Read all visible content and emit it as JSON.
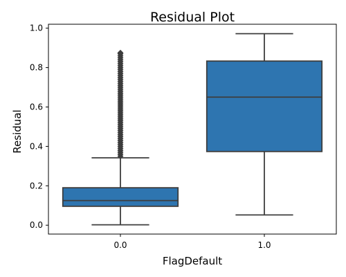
{
  "chart_data": {
    "type": "box",
    "title": "Residual Plot",
    "xlabel": "FlagDefault",
    "ylabel": "Residual",
    "ylim": [
      -0.045,
      1.02
    ],
    "yticks": [
      0.0,
      0.2,
      0.4,
      0.6,
      0.8,
      1.0
    ],
    "ytick_labels": [
      "0.0",
      "0.2",
      "0.4",
      "0.6",
      "0.8",
      "1.0"
    ],
    "categories": [
      "0.0",
      "1.0"
    ],
    "grid": false,
    "box_color": "#2e75b0",
    "edge_color": "#3d3d3d",
    "boxes": [
      {
        "category": "0.0",
        "whisker_low": 0.002,
        "q1": 0.096,
        "median": 0.125,
        "q3": 0.19,
        "whisker_high": 0.342,
        "outliers": [
          0.35,
          0.36,
          0.37,
          0.38,
          0.39,
          0.4,
          0.41,
          0.42,
          0.43,
          0.44,
          0.45,
          0.46,
          0.47,
          0.48,
          0.49,
          0.5,
          0.51,
          0.52,
          0.53,
          0.54,
          0.55,
          0.56,
          0.57,
          0.58,
          0.59,
          0.6,
          0.61,
          0.62,
          0.63,
          0.64,
          0.65,
          0.66,
          0.67,
          0.68,
          0.69,
          0.7,
          0.71,
          0.72,
          0.73,
          0.74,
          0.75,
          0.76,
          0.77,
          0.78,
          0.79,
          0.8,
          0.81,
          0.82,
          0.83,
          0.84,
          0.85,
          0.86,
          0.87,
          0.875
        ]
      },
      {
        "category": "1.0",
        "whisker_low": 0.052,
        "q1": 0.374,
        "median": 0.65,
        "q3": 0.833,
        "whisker_high": 0.972,
        "outliers": []
      }
    ]
  }
}
